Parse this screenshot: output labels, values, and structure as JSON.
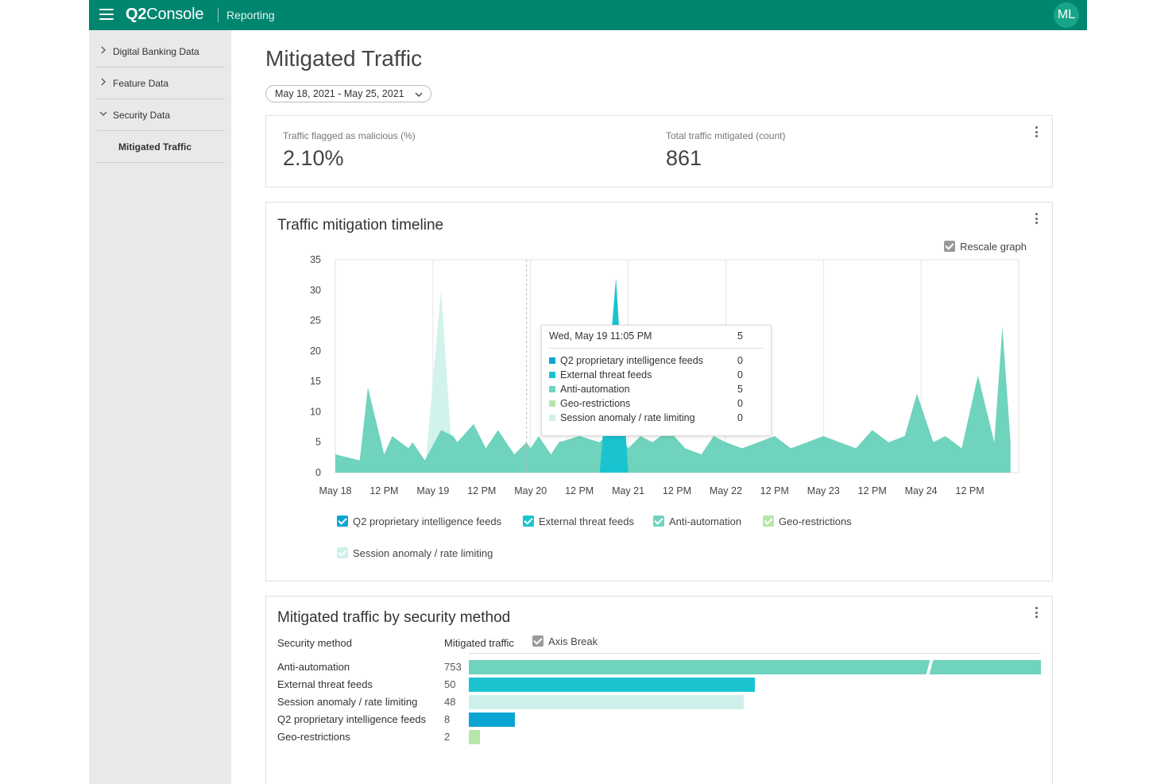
{
  "app": {
    "brand_prefix": "Q2",
    "brand_suffix": "Console",
    "section": "Reporting",
    "user_initials": "ML"
  },
  "sidebar": {
    "items": [
      {
        "label": "Digital Banking Data",
        "expanded": false
      },
      {
        "label": "Feature Data",
        "expanded": false
      },
      {
        "label": "Security Data",
        "expanded": true
      }
    ],
    "subitem": "Mitigated Traffic"
  },
  "page": {
    "title": "Mitigated Traffic",
    "date_range": "May 18, 2021 - May 25, 2021"
  },
  "kpis": [
    {
      "label": "Traffic flagged as malicious (%)",
      "value": "2.10%"
    },
    {
      "label": "Total traffic mitigated (count)",
      "value": "861"
    }
  ],
  "timeline": {
    "title": "Traffic mitigation timeline",
    "rescale_label": "Rescale graph",
    "tooltip": {
      "time": "Wed, May 19 11:05 PM",
      "total": "5",
      "rows": [
        {
          "label": "Q2 proprietary intelligence feeds",
          "value": "0",
          "color": "#0aa5d2"
        },
        {
          "label": "External threat feeds",
          "value": "0",
          "color": "#19c4d0"
        },
        {
          "label": "Anti-automation",
          "value": "5",
          "color": "#6fd3be"
        },
        {
          "label": "Geo-restrictions",
          "value": "0",
          "color": "#b6e6a8"
        },
        {
          "label": "Session anomaly / rate limiting",
          "value": "0",
          "color": "#cdf1ea"
        }
      ]
    },
    "legend": [
      {
        "label": "Q2 proprietary intelligence feeds",
        "color": "#0aa5d2"
      },
      {
        "label": "External threat feeds",
        "color": "#19c4d0"
      },
      {
        "label": "Anti-automation",
        "color": "#6fd3be"
      },
      {
        "label": "Geo-restrictions",
        "color": "#b6e6a8"
      },
      {
        "label": "Session anomaly / rate limiting",
        "color": "#cdf1ea"
      }
    ]
  },
  "chart_data": {
    "type": "area",
    "title": "Traffic mitigation timeline",
    "xlabel": "",
    "ylabel": "",
    "ylim": [
      0,
      35
    ],
    "yticks": [
      "35",
      "30",
      "25",
      "20",
      "15",
      "10",
      "5",
      "0"
    ],
    "xticks": [
      "May 18",
      "12 PM",
      "May 19",
      "12 PM",
      "May 20",
      "12 PM",
      "May 21",
      "12 PM",
      "May 22",
      "12 PM",
      "May 23",
      "12 PM",
      "May 24",
      "12 PM"
    ],
    "grid": true,
    "series_hours": [
      0,
      6,
      8,
      12,
      14,
      18,
      19,
      22,
      26,
      29,
      30,
      34,
      37,
      40,
      44,
      47,
      48,
      50,
      53,
      55,
      60,
      65,
      69,
      72,
      75,
      78,
      82,
      86,
      90,
      93,
      96,
      100,
      104,
      108,
      112,
      116,
      120,
      124,
      128,
      132,
      136,
      140,
      143,
      147,
      150,
      154,
      158,
      162,
      164,
      166
    ],
    "series": [
      {
        "name": "Anti-automation",
        "values": [
          3,
          2,
          14,
          3,
          6,
          4,
          5,
          2,
          7,
          6,
          5,
          8,
          4,
          7,
          3,
          5,
          4,
          6,
          3,
          5,
          6,
          5,
          8,
          4,
          6,
          5,
          7,
          4,
          3,
          6,
          5,
          4,
          5,
          6,
          4,
          5,
          6,
          5,
          4,
          7,
          5,
          6,
          13,
          5,
          6,
          4,
          16,
          5,
          24,
          5
        ]
      },
      {
        "name": "Session anomaly / rate limiting",
        "values": [
          0,
          0,
          0,
          0,
          0,
          0,
          0,
          0,
          30,
          0,
          0,
          0,
          0,
          0,
          0,
          0,
          0,
          0,
          0,
          0,
          0,
          0,
          0,
          0,
          0,
          0,
          0,
          0,
          0,
          0,
          0,
          0,
          0,
          0,
          0,
          0,
          0,
          0,
          0,
          0,
          0,
          0,
          0,
          0,
          0,
          0,
          0,
          0,
          0,
          0
        ]
      },
      {
        "name": "External threat feeds",
        "values": [
          0,
          0,
          0,
          0,
          0,
          0,
          0,
          0,
          0,
          0,
          0,
          0,
          0,
          0,
          0,
          0,
          0,
          0,
          0,
          0,
          0,
          0,
          32,
          0,
          0,
          0,
          0,
          0,
          0,
          0,
          0,
          0,
          0,
          0,
          0,
          0,
          0,
          0,
          0,
          0,
          0,
          0,
          0,
          0,
          0,
          0,
          0,
          0,
          0,
          0
        ]
      }
    ]
  },
  "methods": {
    "title": "Mitigated traffic by security method",
    "col_method": "Security method",
    "col_traffic": "Mitigated traffic",
    "axis_break_label": "Axis Break",
    "rows": [
      {
        "label": "Anti-automation",
        "value": "753",
        "num": 753,
        "color": "#6fd3be"
      },
      {
        "label": "External threat feeds",
        "value": "50",
        "num": 50,
        "color": "#19c4d0"
      },
      {
        "label": "Session anomaly / rate limiting",
        "value": "48",
        "num": 48,
        "color": "#cdf1ea"
      },
      {
        "label": "Q2 proprietary intelligence feeds",
        "value": "8",
        "num": 8,
        "color": "#0aa5d2"
      },
      {
        "label": "Geo-restrictions",
        "value": "2",
        "num": 2,
        "color": "#b6e6a8"
      }
    ]
  },
  "colors": {
    "brand": "#00856f",
    "sidebar": "#e9e9e9",
    "checkbox": "#0aa5d2"
  }
}
